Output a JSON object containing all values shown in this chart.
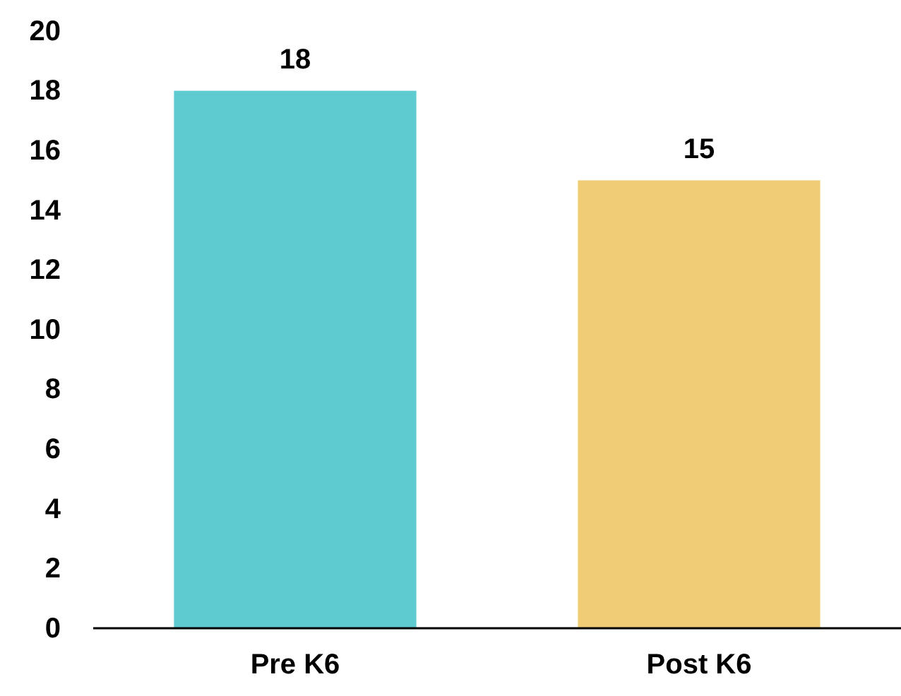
{
  "chart_data": {
    "type": "bar",
    "categories": [
      "Pre K6",
      "Post K6"
    ],
    "values": [
      18,
      15
    ],
    "colors": [
      "#5ecbd1",
      "#f0cc76"
    ],
    "ylim": [
      0,
      20
    ],
    "yticks": [
      0,
      2,
      4,
      6,
      8,
      10,
      12,
      14,
      16,
      18,
      20
    ],
    "data_labels": true,
    "grid": false
  }
}
